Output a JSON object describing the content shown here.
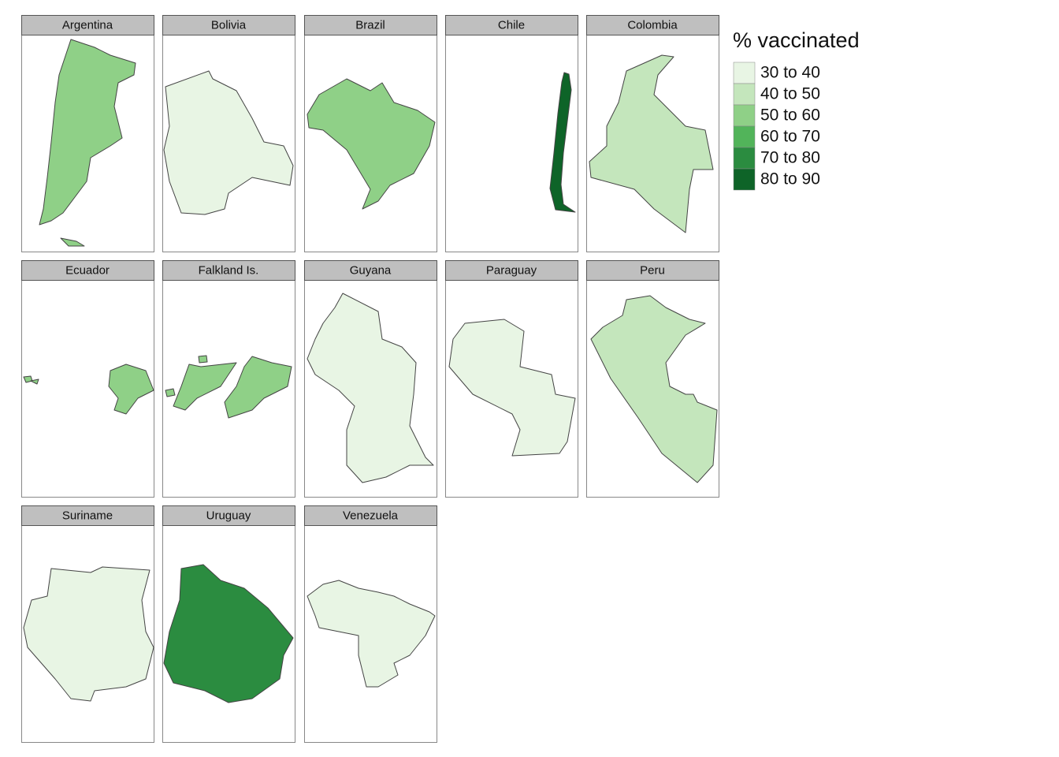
{
  "panels": [
    {
      "name": "Argentina",
      "color": "#8fd087"
    },
    {
      "name": "Bolivia",
      "color": "#e8f5e4"
    },
    {
      "name": "Brazil",
      "color": "#8fd087"
    },
    {
      "name": "Chile",
      "color": "#0e6428"
    },
    {
      "name": "Colombia",
      "color": "#c4e6bc"
    },
    {
      "name": "Ecuador",
      "color": "#8fd087"
    },
    {
      "name": "Falkland Is.",
      "color": "#8fd087"
    },
    {
      "name": "Guyana",
      "color": "#e8f5e4"
    },
    {
      "name": "Paraguay",
      "color": "#e8f5e4"
    },
    {
      "name": "Peru",
      "color": "#c4e6bc"
    },
    {
      "name": "Suriname",
      "color": "#e8f5e4"
    },
    {
      "name": "Uruguay",
      "color": "#2b8c40"
    },
    {
      "name": "Venezuela",
      "color": "#e8f5e4"
    }
  ],
  "legend": {
    "title": "% vaccinated",
    "items": [
      {
        "label": "30 to 40",
        "color": "#e8f5e4"
      },
      {
        "label": "40 to 50",
        "color": "#c4e6bc"
      },
      {
        "label": "50 to 60",
        "color": "#8fd087"
      },
      {
        "label": "60 to 70",
        "color": "#52b45a"
      },
      {
        "label": "70 to 80",
        "color": "#2b8c40"
      },
      {
        "label": "80 to 90",
        "color": "#0e6428"
      }
    ]
  }
}
